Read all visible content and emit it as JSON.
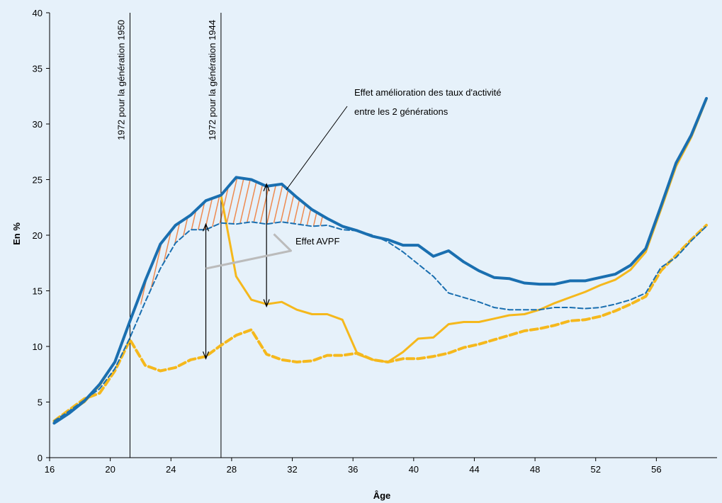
{
  "chart_data": {
    "type": "line",
    "title": "",
    "xlabel": "Âge",
    "ylabel": "En %",
    "xlim": [
      16,
      60
    ],
    "ylim": [
      0,
      40
    ],
    "x_ticks": [
      16,
      20,
      24,
      28,
      32,
      36,
      40,
      44,
      48,
      52,
      56
    ],
    "y_ticks": [
      0,
      5,
      10,
      15,
      20,
      25,
      30,
      35,
      40
    ],
    "grid": false,
    "legend": "none",
    "colors": {
      "blue": "#1a6fb0",
      "yellow": "#f5b81c",
      "hatch": "#ee8a50",
      "grey": "#bbbbbb",
      "background": "#e6f1fa"
    },
    "series": [
      {
        "style": "blue-solid",
        "x": [
          16.3,
          17.3,
          18.3,
          19.3,
          20.3,
          21.3,
          22.3,
          23.3,
          24.3,
          25.3,
          26.3,
          27.3,
          28.3,
          29.3,
          30.3,
          31.3,
          32.3,
          33.3,
          34.3,
          35.3,
          36.3,
          37.3,
          38.3,
          39.3,
          40.3,
          41.3,
          42.3,
          43.3,
          44.3,
          45.3,
          46.3,
          47.3,
          48.3,
          49.3,
          50.3,
          51.3,
          52.3,
          53.3,
          54.3,
          55.3,
          56.3,
          57.3,
          58.3,
          59.3
        ],
        "y": [
          3.1,
          4.0,
          5.1,
          6.6,
          8.6,
          12.3,
          15.9,
          19.2,
          20.9,
          21.8,
          23.1,
          23.6,
          25.2,
          25.0,
          24.4,
          24.6,
          23.4,
          22.3,
          21.5,
          20.8,
          20.4,
          19.9,
          19.6,
          19.1,
          19.1,
          18.1,
          18.6,
          17.6,
          16.8,
          16.2,
          16.1,
          15.7,
          15.6,
          15.6,
          15.9,
          15.9,
          16.2,
          16.5,
          17.3,
          18.8,
          22.6,
          26.5,
          29.0,
          32.3
        ]
      },
      {
        "style": "blue-dashed",
        "x": [
          16.3,
          17.3,
          18.3,
          19.3,
          20.3,
          21.3,
          22.3,
          23.3,
          24.3,
          25.3,
          26.3,
          27.3,
          28.3,
          29.3,
          30.3,
          31.3,
          32.3,
          33.3,
          34.3,
          35.3,
          36.3,
          37.3,
          38.3,
          39.3,
          40.3,
          41.3,
          42.3,
          43.3,
          44.3,
          45.3,
          46.3,
          47.3,
          48.3,
          49.3,
          50.3,
          51.3,
          52.3,
          53.3,
          54.3,
          55.3,
          56.3,
          57.3,
          58.3,
          59.3
        ],
        "y": [
          3.3,
          4.2,
          5.2,
          6.2,
          8.0,
          10.8,
          14.0,
          17.0,
          19.3,
          20.5,
          20.5,
          21.1,
          21.0,
          21.2,
          21.0,
          21.2,
          21.0,
          20.8,
          20.9,
          20.5,
          20.4,
          20.0,
          19.4,
          18.5,
          17.4,
          16.3,
          14.8,
          14.4,
          14.0,
          13.5,
          13.3,
          13.3,
          13.3,
          13.5,
          13.5,
          13.4,
          13.5,
          13.8,
          14.2,
          14.8,
          17.1,
          18.0,
          19.5,
          20.8
        ]
      },
      {
        "style": "yellow-solid",
        "x": [
          16.3,
          17.3,
          18.3,
          19.3,
          20.3,
          21.3,
          22.3,
          23.3,
          24.3,
          25.3,
          26.3,
          27.3,
          28.3,
          29.3,
          30.3,
          31.3,
          32.3,
          33.3,
          34.3,
          35.3,
          36.3,
          37.3,
          38.3,
          39.3,
          40.3,
          41.3,
          42.3,
          43.3,
          44.3,
          45.3,
          46.3,
          47.3,
          48.3,
          49.3,
          50.3,
          51.3,
          52.3,
          53.3,
          54.3,
          55.3,
          56.3,
          57.3,
          58.3,
          59.3
        ],
        "y": [
          3.2,
          4.1,
          5.0,
          6.5,
          8.6,
          12.3,
          15.9,
          19.2,
          20.9,
          21.8,
          23.1,
          23.6,
          16.3,
          14.2,
          13.8,
          14.0,
          13.3,
          12.9,
          12.9,
          12.4,
          9.3,
          8.8,
          8.6,
          9.5,
          10.7,
          10.8,
          12.0,
          12.2,
          12.2,
          12.5,
          12.8,
          12.9,
          13.3,
          13.9,
          14.4,
          14.9,
          15.5,
          16.0,
          16.9,
          18.5,
          22.3,
          26.2,
          28.8,
          32.2
        ]
      },
      {
        "style": "yellow-dashed",
        "x": [
          16.3,
          17.3,
          18.3,
          19.3,
          20.3,
          21.3,
          22.3,
          23.3,
          24.3,
          25.3,
          26.3,
          27.3,
          28.3,
          29.3,
          30.3,
          31.3,
          32.3,
          33.3,
          34.3,
          35.3,
          36.3,
          37.3,
          38.3,
          39.3,
          40.3,
          41.3,
          42.3,
          43.3,
          44.3,
          45.3,
          46.3,
          47.3,
          48.3,
          49.3,
          50.3,
          51.3,
          52.3,
          53.3,
          54.3,
          55.3,
          56.3,
          57.3,
          58.3,
          59.3
        ],
        "y": [
          3.3,
          4.3,
          5.3,
          5.8,
          7.8,
          10.6,
          8.3,
          7.8,
          8.1,
          8.8,
          9.1,
          10.1,
          11.0,
          11.5,
          9.3,
          8.8,
          8.6,
          8.7,
          9.2,
          9.2,
          9.4,
          8.8,
          8.6,
          8.9,
          8.9,
          9.1,
          9.4,
          9.9,
          10.2,
          10.6,
          11.0,
          11.4,
          11.6,
          11.9,
          12.3,
          12.4,
          12.7,
          13.2,
          13.8,
          14.5,
          16.8,
          18.2,
          19.6,
          20.9
        ]
      }
    ],
    "vertical_markers": [
      {
        "x": 21.3,
        "label": "1972 pour la génération 1950"
      },
      {
        "x": 27.3,
        "label": "1972 pour la génération 1944"
      }
    ],
    "annotations": {
      "activity_line1": "Effet amélioration des taux d'activité",
      "activity_line2": "entre les 2 générations",
      "avpf": "Effet AVPF"
    }
  }
}
